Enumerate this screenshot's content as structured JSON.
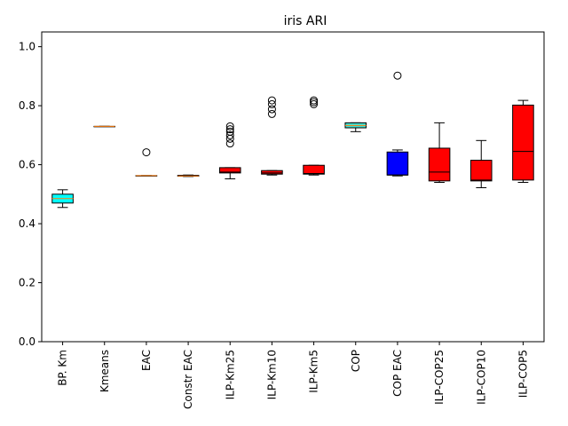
{
  "chart_data": {
    "type": "box",
    "title": "iris ARI",
    "xlabel": "",
    "ylabel": "",
    "ylim": [
      0.0,
      1.05
    ],
    "yticks": [
      0.0,
      0.2,
      0.4,
      0.6,
      0.8,
      1.0
    ],
    "ytick_labels": [
      "0.0",
      "0.2",
      "0.4",
      "0.6",
      "0.8",
      "1.0"
    ],
    "grid": false,
    "categories": [
      "BP. Km",
      "Kmeans",
      "EAC",
      "Constr EAC",
      "ILP-Km25",
      "ILP-Km10",
      "ILP-Km5",
      "COP",
      "COP EAC",
      "ILP-COP25",
      "ILP-COP10",
      "ILP-COP5"
    ],
    "boxes": [
      {
        "label": "BP. Km",
        "whisker_low": 0.455,
        "q1": 0.47,
        "median": 0.485,
        "q3": 0.5,
        "whisker_high": 0.515,
        "outliers": [],
        "color": "#00ffff"
      },
      {
        "label": "Kmeans",
        "whisker_low": 0.73,
        "q1": 0.73,
        "median": 0.73,
        "q3": 0.73,
        "whisker_high": 0.73,
        "outliers": [],
        "color": "#00ffff"
      },
      {
        "label": "EAC",
        "whisker_low": 0.563,
        "q1": 0.563,
        "median": 0.563,
        "q3": 0.563,
        "whisker_high": 0.563,
        "outliers": [
          0.642
        ],
        "color": "#00ffff"
      },
      {
        "label": "Constr EAC",
        "whisker_low": 0.56,
        "q1": 0.561,
        "median": 0.562,
        "q3": 0.564,
        "whisker_high": 0.565,
        "outliers": [],
        "color": "#00ffff"
      },
      {
        "label": "ILP-Km25",
        "whisker_low": 0.552,
        "q1": 0.572,
        "median": 0.575,
        "q3": 0.59,
        "whisker_high": 0.59,
        "outliers": [
          0.672,
          0.688,
          0.7,
          0.712,
          0.72,
          0.73
        ],
        "color": "#ff0000"
      },
      {
        "label": "ILP-Km10",
        "whisker_low": 0.565,
        "q1": 0.568,
        "median": 0.572,
        "q3": 0.58,
        "whisker_high": 0.58,
        "outliers": [
          0.772,
          0.788,
          0.805,
          0.818
        ],
        "color": "#ff0000"
      },
      {
        "label": "ILP-Km5",
        "whisker_low": 0.565,
        "q1": 0.568,
        "median": 0.57,
        "q3": 0.598,
        "whisker_high": 0.598,
        "outliers": [
          0.805,
          0.812,
          0.818
        ],
        "color": "#ff0000"
      },
      {
        "label": "COP",
        "whisker_low": 0.712,
        "q1": 0.725,
        "median": 0.733,
        "q3": 0.742,
        "whisker_high": 0.742,
        "outliers": [],
        "color": "#40e0d0"
      },
      {
        "label": "COP EAC",
        "whisker_low": 0.562,
        "q1": 0.565,
        "median": 0.565,
        "q3": 0.643,
        "whisker_high": 0.65,
        "outliers": [
          0.902
        ],
        "color": "#0000ff"
      },
      {
        "label": "ILP-COP25",
        "whisker_low": 0.54,
        "q1": 0.545,
        "median": 0.575,
        "q3": 0.656,
        "whisker_high": 0.742,
        "outliers": [],
        "color": "#ff0000"
      },
      {
        "label": "ILP-COP10",
        "whisker_low": 0.522,
        "q1": 0.545,
        "median": 0.548,
        "q3": 0.615,
        "whisker_high": 0.682,
        "outliers": [],
        "color": "#ff0000"
      },
      {
        "label": "ILP-COP5",
        "whisker_low": 0.54,
        "q1": 0.548,
        "median": 0.645,
        "q3": 0.802,
        "whisker_high": 0.818,
        "outliers": [],
        "color": "#ff0000"
      }
    ]
  }
}
